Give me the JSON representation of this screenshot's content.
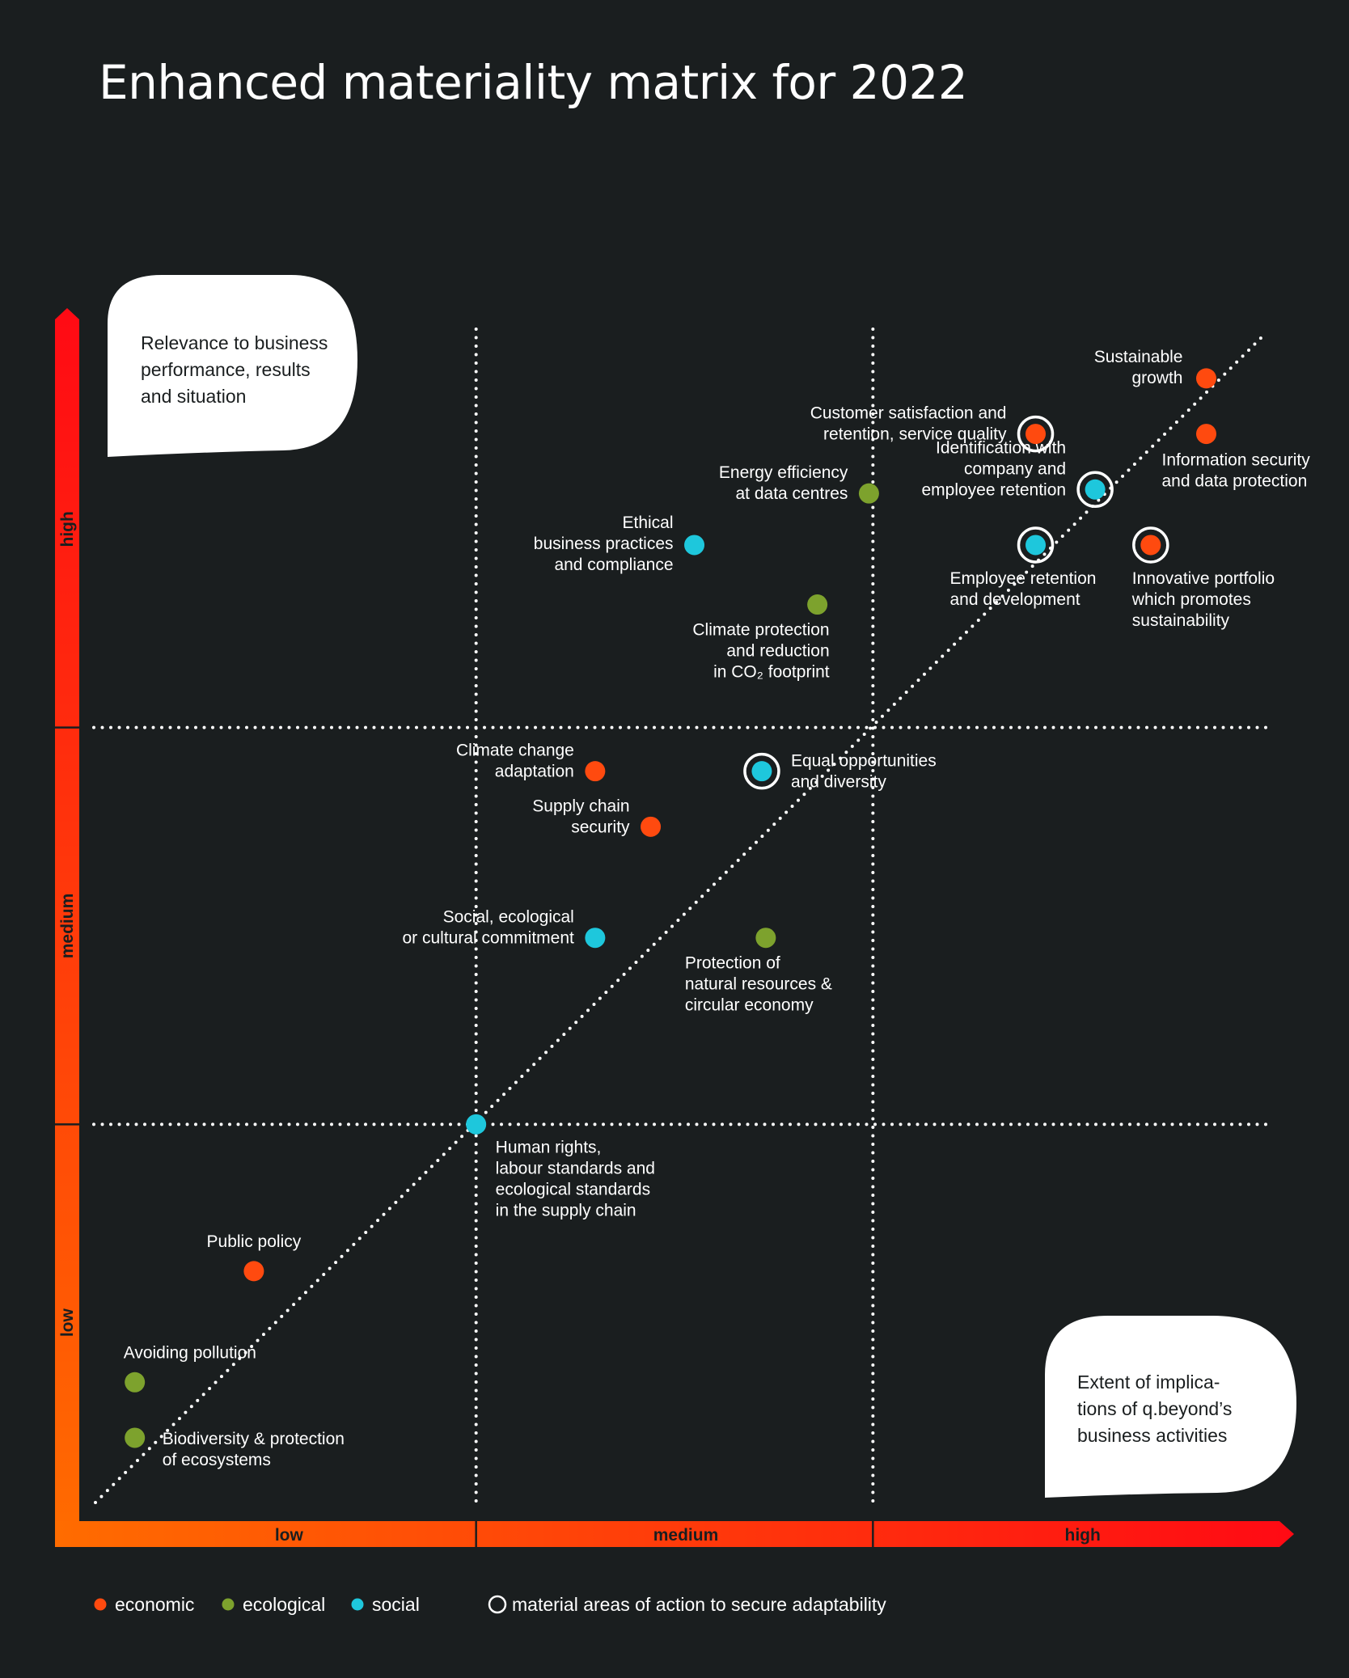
{
  "chart_data": {
    "type": "scatter",
    "title": "Enhanced materiality matrix for 2022",
    "x_levels": [
      "low",
      "medium",
      "high"
    ],
    "y_levels": [
      "low",
      "medium",
      "high"
    ],
    "y_bubble": [
      "Relevance to business",
      "performance, results",
      "and situation"
    ],
    "x_bubble": [
      "Extent of implica-",
      "tions of q.beyond’s",
      "business activities"
    ],
    "xlim": [
      0,
      3
    ],
    "ylim": [
      0,
      3
    ],
    "colors": {
      "economic": "#ff4a0f",
      "ecological": "#7da22d",
      "social": "#1ec7dc"
    },
    "legend": [
      {
        "key": "economic",
        "label": "economic"
      },
      {
        "key": "ecological",
        "label": "ecological"
      },
      {
        "key": "social",
        "label": "social"
      },
      {
        "key": "material",
        "label": "material areas of action to secure adaptability"
      }
    ],
    "points": [
      {
        "x": 2.84,
        "y": 2.88,
        "cat": "economic",
        "material": false,
        "label": [
          "Sustainable",
          "growth"
        ],
        "anchor": "end"
      },
      {
        "x": 2.84,
        "y": 2.74,
        "cat": "economic",
        "material": false,
        "label": [
          "Information security",
          "and data protection"
        ],
        "anchor": "start"
      },
      {
        "x": 2.41,
        "y": 2.74,
        "cat": "economic",
        "material": true,
        "label": [
          "Customer satisfaction and",
          "retention, service quality"
        ],
        "anchor": "end"
      },
      {
        "x": 2.56,
        "y": 2.6,
        "cat": "social",
        "material": true,
        "label": [
          "Identification with",
          "company and",
          "employee retention"
        ],
        "anchor": "end"
      },
      {
        "x": 1.99,
        "y": 2.59,
        "cat": "ecological",
        "material": false,
        "label": [
          "Energy efficiency",
          "at data centres"
        ],
        "anchor": "end"
      },
      {
        "x": 1.55,
        "y": 2.46,
        "cat": "social",
        "material": false,
        "label": [
          "Ethical",
          "business practices",
          "and compliance"
        ],
        "anchor": "end"
      },
      {
        "x": 2.41,
        "y": 2.46,
        "cat": "social",
        "material": true,
        "label": [
          "Employee retention",
          "and development"
        ],
        "anchor": "start"
      },
      {
        "x": 2.7,
        "y": 2.46,
        "cat": "economic",
        "material": true,
        "label": [
          "Innovative portfolio",
          "which promotes",
          "sustainability"
        ],
        "anchor": "start"
      },
      {
        "x": 1.86,
        "y": 2.31,
        "cat": "ecological",
        "material": false,
        "label": [
          "Climate protection",
          "and reduction",
          "in CO₂ footprint"
        ],
        "anchor": "end"
      },
      {
        "x": 1.3,
        "y": 1.89,
        "cat": "economic",
        "material": false,
        "label": [
          "Climate change",
          "adaptation"
        ],
        "anchor": "end"
      },
      {
        "x": 1.72,
        "y": 1.89,
        "cat": "social",
        "material": true,
        "label": [
          "Equal opportunities",
          "and diversity"
        ],
        "anchor": "start"
      },
      {
        "x": 1.44,
        "y": 1.75,
        "cat": "economic",
        "material": false,
        "label": [
          "Supply chain",
          "security"
        ],
        "anchor": "end"
      },
      {
        "x": 1.3,
        "y": 1.47,
        "cat": "social",
        "material": false,
        "label": [
          "Social, ecological",
          "or cultural commitment"
        ],
        "anchor": "end"
      },
      {
        "x": 1.73,
        "y": 1.47,
        "cat": "ecological",
        "material": false,
        "label": [
          "Protection of",
          "natural resources &",
          "circular economy"
        ],
        "anchor": "start"
      },
      {
        "x": 1.0,
        "y": 1.0,
        "cat": "social",
        "material": false,
        "label": [
          "Human rights,",
          "labour standards and",
          "ecological standards",
          "in the supply chain"
        ],
        "anchor": "start"
      },
      {
        "x": 0.44,
        "y": 0.63,
        "cat": "economic",
        "material": false,
        "label": [
          "Public policy"
        ],
        "anchor": "middle"
      },
      {
        "x": 0.14,
        "y": 0.35,
        "cat": "ecological",
        "material": false,
        "label": [
          "Avoiding pollution"
        ],
        "anchor": "start"
      },
      {
        "x": 0.14,
        "y": 0.21,
        "cat": "ecological",
        "material": false,
        "label": [
          "Biodiversity & protection",
          "of ecosystems"
        ],
        "anchor": "start"
      }
    ]
  }
}
